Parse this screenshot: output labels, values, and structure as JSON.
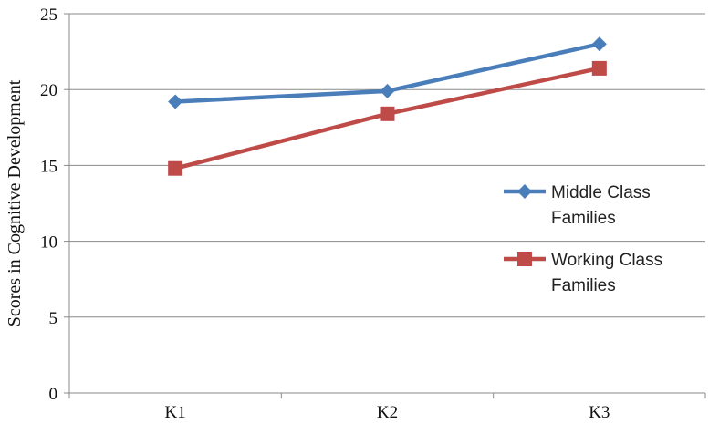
{
  "chart_data": {
    "type": "line",
    "categories": [
      "K1",
      "K2",
      "K3"
    ],
    "series": [
      {
        "name_lines": [
          "Middle Class",
          "Families"
        ],
        "values": [
          19.2,
          19.9,
          23.0
        ],
        "color": "#4a7ebb",
        "marker": "diamond"
      },
      {
        "name_lines": [
          "Working Class",
          "Families"
        ],
        "values": [
          14.8,
          18.4,
          21.4
        ],
        "color": "#be4b48",
        "marker": "square"
      }
    ],
    "ylabel": "Scores in Cognitive Development",
    "ylim": [
      0,
      25
    ],
    "yticks": [
      0,
      5,
      10,
      15,
      20,
      25
    ],
    "grid": true,
    "legend_position": "right"
  }
}
